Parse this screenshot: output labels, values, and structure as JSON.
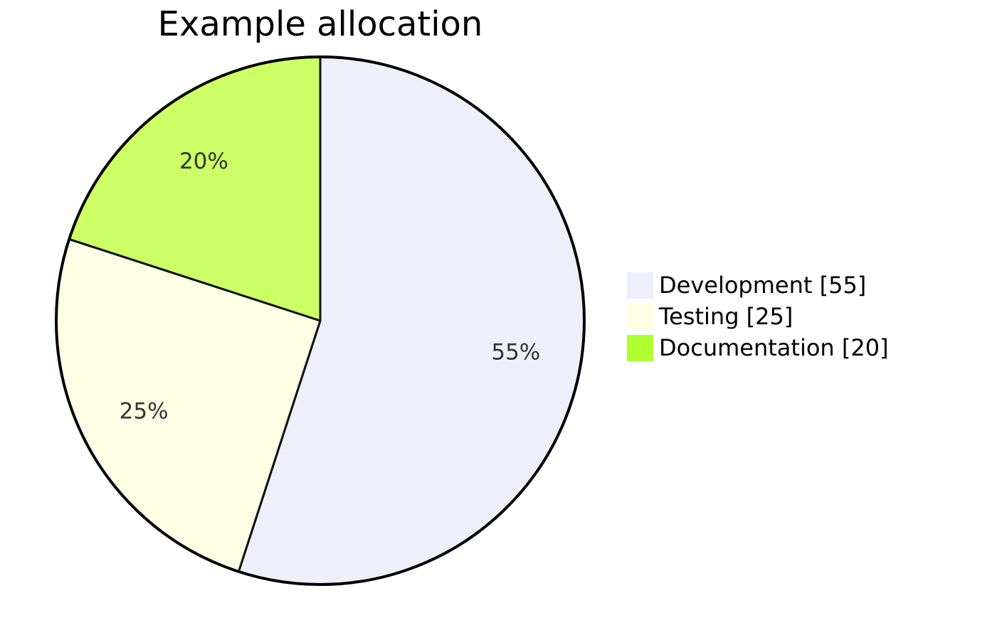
{
  "chart_data": {
    "type": "pie",
    "title": "Example allocation",
    "slices": [
      {
        "label": "Development",
        "value": 55,
        "percent_label": "55%",
        "legend_label": "Development [55]",
        "color": "#efeffb"
      },
      {
        "label": "Testing",
        "value": 25,
        "percent_label": "25%",
        "legend_label": "Testing [25]",
        "color": "#ffffe6"
      },
      {
        "label": "Documentation",
        "value": 20,
        "percent_label": "20%",
        "legend_label": "Documentation [20]",
        "color": "#ccff66"
      }
    ],
    "legend_colors": [
      "#eeeefc",
      "#ffffe6",
      "#adff2f"
    ],
    "legend_position": "right",
    "start_angle": "top",
    "direction": "clockwise"
  }
}
